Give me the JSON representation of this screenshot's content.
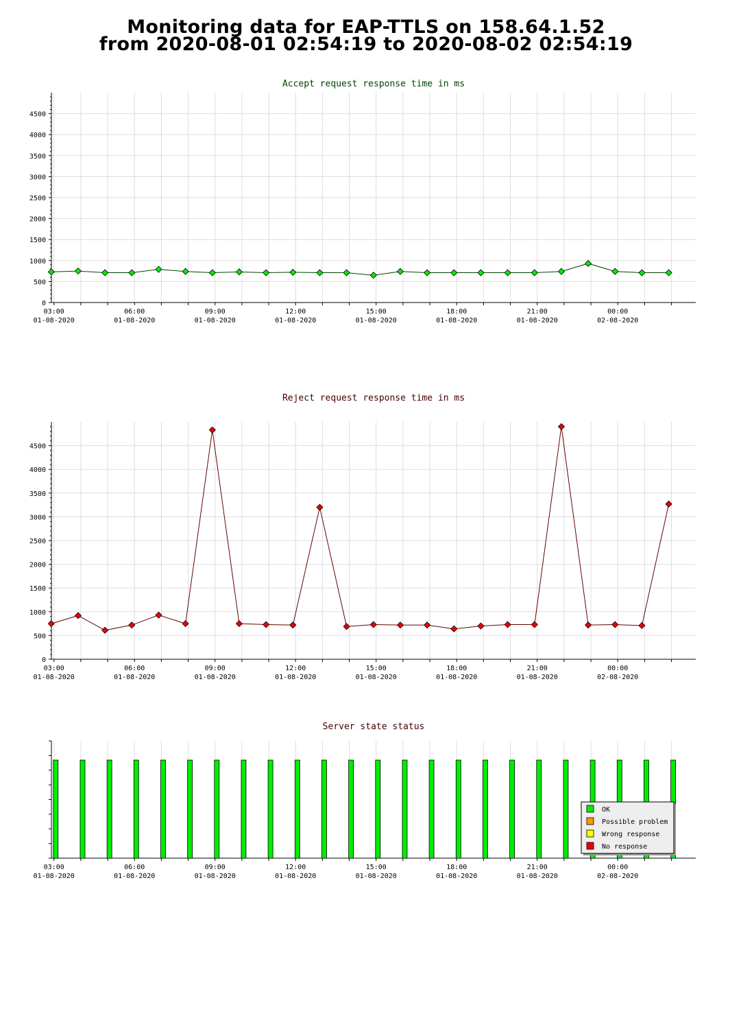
{
  "page": {
    "title_line1": "Monitoring data for EAP-TTLS on 158.64.1.52",
    "title_line2": "from 2020-08-01 02:54:19 to 2020-08-02 02:54:19"
  },
  "colors": {
    "accept_title": "#004400",
    "reject_title": "#440000",
    "status_title": "#440000",
    "accept_line": "#004400",
    "accept_marker": "#00ee00",
    "reject_line": "#660000",
    "reject_marker": "#ee0000",
    "grid": "#dddddd",
    "bar_ok": "#00ee00"
  },
  "chart_data": [
    {
      "type": "line",
      "title": "Accept request response time in ms",
      "x_tick_labels": [
        {
          "time": "03:00",
          "date": "01-08-2020"
        },
        {
          "time": "06:00",
          "date": "01-08-2020"
        },
        {
          "time": "09:00",
          "date": "01-08-2020"
        },
        {
          "time": "12:00",
          "date": "01-08-2020"
        },
        {
          "time": "15:00",
          "date": "01-08-2020"
        },
        {
          "time": "18:00",
          "date": "01-08-2020"
        },
        {
          "time": "21:00",
          "date": "01-08-2020"
        },
        {
          "time": "00:00",
          "date": "02-08-2020"
        }
      ],
      "y_ticks": [
        0,
        500,
        1000,
        1500,
        2000,
        2500,
        3000,
        3500,
        4000,
        4500
      ],
      "ylim": [
        0,
        5000
      ],
      "xlim": [
        "2020-08-01 02:54:19",
        "2020-08-02 02:54:19"
      ],
      "grid": true,
      "series": [
        {
          "x": [
            "2020-08-01 02:54",
            "2020-08-01 03:54",
            "2020-08-01 04:54",
            "2020-08-01 05:54",
            "2020-08-01 06:54",
            "2020-08-01 07:54",
            "2020-08-01 08:54",
            "2020-08-01 09:54",
            "2020-08-01 10:54",
            "2020-08-01 11:54",
            "2020-08-01 12:54",
            "2020-08-01 13:54",
            "2020-08-01 14:54",
            "2020-08-01 15:54",
            "2020-08-01 16:54",
            "2020-08-01 17:54",
            "2020-08-01 18:54",
            "2020-08-01 19:54",
            "2020-08-01 20:54",
            "2020-08-01 21:54",
            "2020-08-01 22:54",
            "2020-08-01 23:54",
            "2020-08-02 00:54",
            "2020-08-02 01:54"
          ],
          "values": [
            730,
            750,
            710,
            710,
            790,
            740,
            710,
            730,
            710,
            720,
            710,
            710,
            650,
            740,
            710,
            710,
            710,
            710,
            710,
            740,
            930,
            740,
            710,
            710
          ]
        }
      ]
    },
    {
      "type": "line",
      "title": "Reject request response time in ms",
      "x_tick_labels": [
        {
          "time": "03:00",
          "date": "01-08-2020"
        },
        {
          "time": "06:00",
          "date": "01-08-2020"
        },
        {
          "time": "09:00",
          "date": "01-08-2020"
        },
        {
          "time": "12:00",
          "date": "01-08-2020"
        },
        {
          "time": "15:00",
          "date": "01-08-2020"
        },
        {
          "time": "18:00",
          "date": "01-08-2020"
        },
        {
          "time": "21:00",
          "date": "01-08-2020"
        },
        {
          "time": "00:00",
          "date": "02-08-2020"
        }
      ],
      "y_ticks": [
        0,
        500,
        1000,
        1500,
        2000,
        2500,
        3000,
        3500,
        4000,
        4500
      ],
      "ylim": [
        0,
        5000
      ],
      "xlim": [
        "2020-08-01 02:54:19",
        "2020-08-02 02:54:19"
      ],
      "grid": true,
      "series": [
        {
          "x": [
            "2020-08-01 02:54",
            "2020-08-01 03:54",
            "2020-08-01 04:54",
            "2020-08-01 05:54",
            "2020-08-01 06:54",
            "2020-08-01 07:54",
            "2020-08-01 08:54",
            "2020-08-01 09:54",
            "2020-08-01 10:54",
            "2020-08-01 11:54",
            "2020-08-01 12:54",
            "2020-08-01 13:54",
            "2020-08-01 14:54",
            "2020-08-01 15:54",
            "2020-08-01 16:54",
            "2020-08-01 17:54",
            "2020-08-01 18:54",
            "2020-08-01 19:54",
            "2020-08-01 20:54",
            "2020-08-01 21:54",
            "2020-08-01 22:54",
            "2020-08-01 23:54",
            "2020-08-02 00:54",
            "2020-08-02 01:54"
          ],
          "values": [
            750,
            920,
            610,
            720,
            930,
            750,
            4830,
            750,
            730,
            720,
            3200,
            690,
            730,
            720,
            720,
            640,
            700,
            730,
            730,
            4900,
            720,
            730,
            710,
            3270
          ]
        }
      ]
    },
    {
      "type": "bar",
      "title": "Server state status",
      "x_tick_labels": [
        {
          "time": "03:00",
          "date": "01-08-2020"
        },
        {
          "time": "06:00",
          "date": "01-08-2020"
        },
        {
          "time": "09:00",
          "date": "01-08-2020"
        },
        {
          "time": "12:00",
          "date": "01-08-2020"
        },
        {
          "time": "15:00",
          "date": "01-08-2020"
        },
        {
          "time": "18:00",
          "date": "01-08-2020"
        },
        {
          "time": "21:00",
          "date": "01-08-2020"
        },
        {
          "time": "00:00",
          "date": "02-08-2020"
        }
      ],
      "xlim": [
        "2020-08-01 02:54:19",
        "2020-08-02 02:54:19"
      ],
      "legend_position": "bottom-right",
      "legend": [
        {
          "label": "OK",
          "color": "#00ee00"
        },
        {
          "label": "Possible problem",
          "color": "#ff9900"
        },
        {
          "label": "Wrong response",
          "color": "#ffff00"
        },
        {
          "label": "No response",
          "color": "#ee0000"
        }
      ],
      "bars": {
        "x": [
          "2020-08-01 02:54",
          "2020-08-01 03:54",
          "2020-08-01 04:54",
          "2020-08-01 05:54",
          "2020-08-01 06:54",
          "2020-08-01 07:54",
          "2020-08-01 08:54",
          "2020-08-01 09:54",
          "2020-08-01 10:54",
          "2020-08-01 11:54",
          "2020-08-01 12:54",
          "2020-08-01 13:54",
          "2020-08-01 14:54",
          "2020-08-01 15:54",
          "2020-08-01 16:54",
          "2020-08-01 17:54",
          "2020-08-01 18:54",
          "2020-08-01 19:54",
          "2020-08-01 20:54",
          "2020-08-01 21:54",
          "2020-08-01 22:54",
          "2020-08-01 23:54",
          "2020-08-02 00:54",
          "2020-08-02 01:54"
        ],
        "status": [
          "OK",
          "OK",
          "OK",
          "OK",
          "OK",
          "OK",
          "OK",
          "OK",
          "OK",
          "OK",
          "OK",
          "OK",
          "OK",
          "OK",
          "OK",
          "OK",
          "OK",
          "OK",
          "OK",
          "OK",
          "OK",
          "OK",
          "OK",
          "OK"
        ]
      }
    }
  ]
}
